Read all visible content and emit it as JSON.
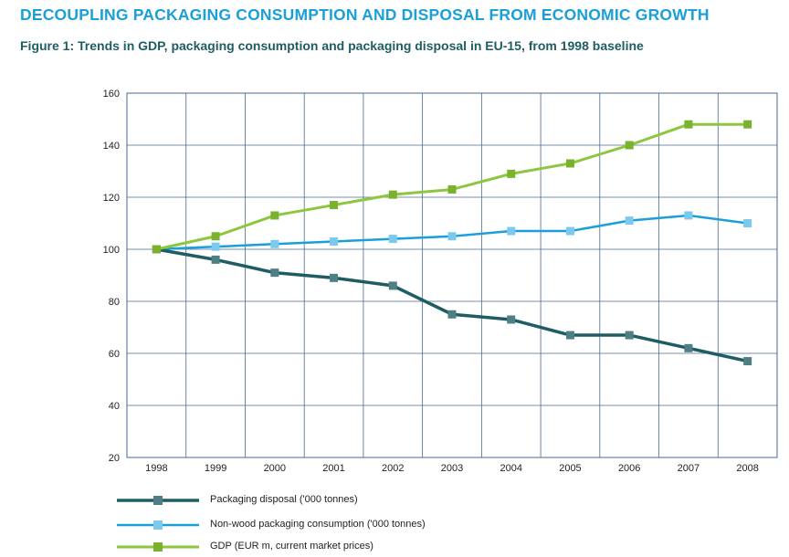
{
  "page": {
    "heading": "DECOUPLING PACKAGING CONSUMPTION AND DISPOSAL FROM ECONOMIC GROWTH",
    "figure_title": "Figure 1: Trends in GDP, packaging consumption and packaging disposal in EU-15, from 1998 baseline"
  },
  "chart_data": {
    "type": "line",
    "title": "Figure 1: Trends in GDP, packaging consumption and packaging disposal in EU-15, from 1998 baseline",
    "x": [
      "1998",
      "1999",
      "2000",
      "2001",
      "2002",
      "2003",
      "2004",
      "2005",
      "2006",
      "2007",
      "2008"
    ],
    "ylim": [
      20,
      160
    ],
    "yticks": [
      20,
      40,
      60,
      80,
      100,
      120,
      140,
      160
    ],
    "grid": true,
    "legend_position": "bottom-left",
    "series": [
      {
        "name": "Packaging disposal ('000 tonnes)",
        "color": "#1e5d63",
        "marker_color": "#4d7f84",
        "values": [
          100,
          96,
          91,
          89,
          86,
          75,
          73,
          67,
          67,
          62,
          57
        ]
      },
      {
        "name": "Non-wood packaging consumption ('000 tonnes)",
        "color": "#1a9fd9",
        "marker_color": "#7cc9ee",
        "values": [
          100,
          101,
          102,
          103,
          104,
          105,
          107,
          107,
          111,
          113,
          110
        ]
      },
      {
        "name": "GDP (EUR m, current market prices)",
        "color": "#8dc63f",
        "marker_color": "#7ab22e",
        "values": [
          100,
          105,
          113,
          117,
          121,
          123,
          129,
          133,
          140,
          148,
          148
        ]
      }
    ]
  }
}
